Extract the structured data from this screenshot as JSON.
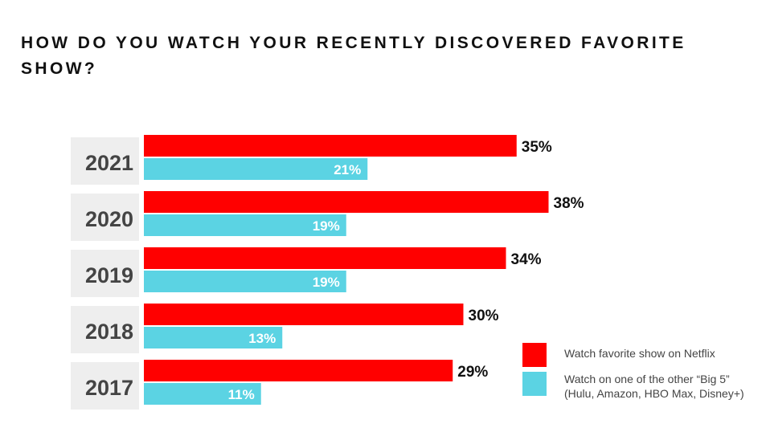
{
  "title": "HOW DO YOU WATCH YOUR RECENTLY DISCOVERED FAVORITE SHOW?",
  "colors": {
    "netflix": "#ff0000",
    "big5": "#5bd3e3",
    "label_bg": "#eeeeee"
  },
  "legend": [
    {
      "label": "Watch favorite show on Netflix",
      "color": "#ff0000"
    },
    {
      "label": "Watch on one of the other “Big 5”\n(Hulu, Amazon, HBO Max, Disney+)",
      "color": "#5bd3e3"
    }
  ],
  "chart_data": {
    "type": "bar",
    "orientation": "horizontal",
    "categories": [
      "2021",
      "2020",
      "2019",
      "2018",
      "2017"
    ],
    "series": [
      {
        "name": "Watch favorite show on Netflix",
        "values": [
          35,
          38,
          34,
          30,
          29
        ],
        "labels": [
          "35%",
          "38%",
          "34%",
          "30%",
          "29%"
        ]
      },
      {
        "name": "Watch on one of the other “Big 5” (Hulu, Amazon, HBO Max, Disney+)",
        "values": [
          21,
          19,
          19,
          13,
          11
        ],
        "labels": [
          "21%",
          "19%",
          "19%",
          "13%",
          "11%"
        ]
      }
    ],
    "title": "HOW DO YOU WATCH YOUR RECENTLY DISCOVERED FAVORITE SHOW?",
    "xlabel": "",
    "ylabel": "",
    "legend_position": "bottom-right",
    "grid": false
  }
}
